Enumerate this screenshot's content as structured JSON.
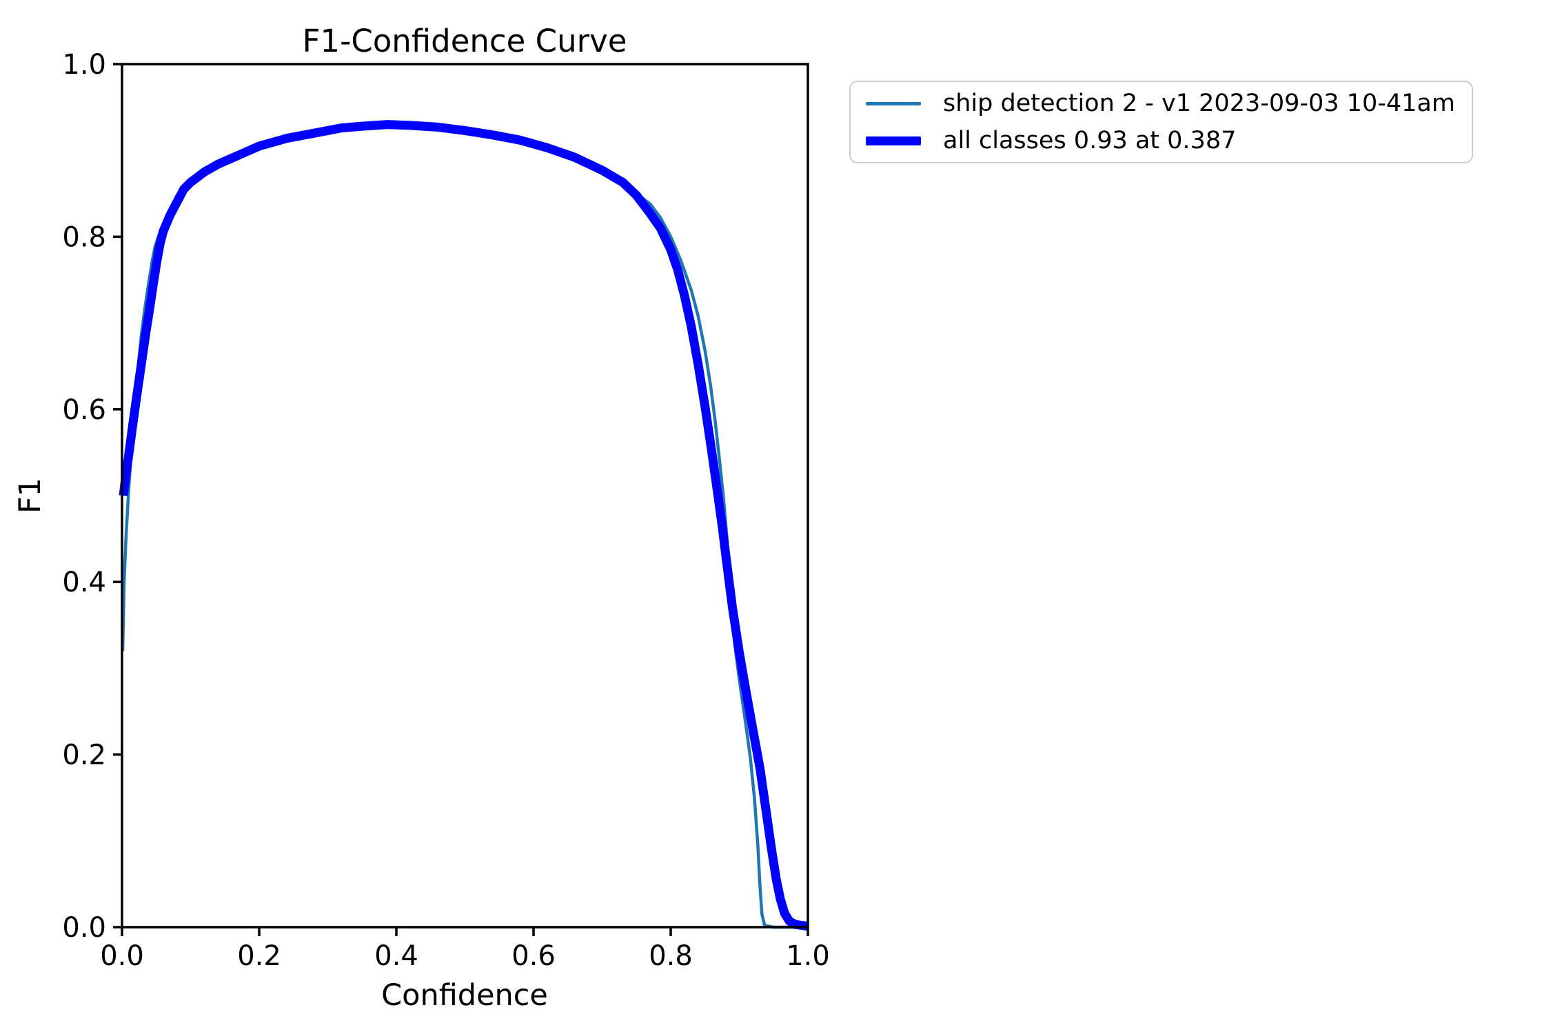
{
  "figure": {
    "background_color": "#ffffff",
    "text_color": "#000000"
  },
  "chart_data": {
    "type": "line",
    "title": "F1-Confidence Curve",
    "xlabel": "Confidence",
    "ylabel": "F1",
    "xlim": [
      0.0,
      1.0
    ],
    "ylim": [
      0.0,
      1.0
    ],
    "grid": false,
    "axis_color": "#000000",
    "xticks": {
      "values": [
        0.0,
        0.2,
        0.4,
        0.6,
        0.8,
        1.0
      ],
      "labels": [
        "0.0",
        "0.2",
        "0.4",
        "0.6",
        "0.8",
        "1.0"
      ]
    },
    "yticks": {
      "values": [
        0.0,
        0.2,
        0.4,
        0.6,
        0.8,
        1.0
      ],
      "labels": [
        "0.0",
        "0.2",
        "0.4",
        "0.6",
        "0.8",
        "1.0"
      ]
    },
    "legend": {
      "position": "outside-upper-right",
      "border_color": "#cccccc",
      "background_color": "#ffffff"
    },
    "series": [
      {
        "name": "ship-detection-2-v1",
        "label": "ship detection 2 - v1 2023-09-03 10-41am",
        "color": "#1f77b4",
        "line_width": 4.5,
        "points": [
          [
            0.001,
            0.32
          ],
          [
            0.003,
            0.4
          ],
          [
            0.006,
            0.455
          ],
          [
            0.01,
            0.51
          ],
          [
            0.014,
            0.555
          ],
          [
            0.018,
            0.6
          ],
          [
            0.023,
            0.645
          ],
          [
            0.028,
            0.685
          ],
          [
            0.033,
            0.715
          ],
          [
            0.038,
            0.742
          ],
          [
            0.044,
            0.772
          ],
          [
            0.048,
            0.788
          ],
          [
            0.053,
            0.8
          ],
          [
            0.06,
            0.815
          ],
          [
            0.07,
            0.83
          ],
          [
            0.08,
            0.845
          ],
          [
            0.09,
            0.857
          ],
          [
            0.1,
            0.864
          ],
          [
            0.12,
            0.875
          ],
          [
            0.14,
            0.883
          ],
          [
            0.16,
            0.89
          ],
          [
            0.18,
            0.897
          ],
          [
            0.2,
            0.904
          ],
          [
            0.24,
            0.913
          ],
          [
            0.28,
            0.92
          ],
          [
            0.32,
            0.925
          ],
          [
            0.36,
            0.928
          ],
          [
            0.4,
            0.93
          ],
          [
            0.44,
            0.929
          ],
          [
            0.48,
            0.926
          ],
          [
            0.52,
            0.922
          ],
          [
            0.56,
            0.916
          ],
          [
            0.6,
            0.907
          ],
          [
            0.64,
            0.896
          ],
          [
            0.68,
            0.883
          ],
          [
            0.71,
            0.871
          ],
          [
            0.74,
            0.856
          ],
          [
            0.77,
            0.838
          ],
          [
            0.785,
            0.822
          ],
          [
            0.8,
            0.8
          ],
          [
            0.815,
            0.772
          ],
          [
            0.83,
            0.738
          ],
          [
            0.84,
            0.708
          ],
          [
            0.85,
            0.668
          ],
          [
            0.858,
            0.628
          ],
          [
            0.865,
            0.585
          ],
          [
            0.872,
            0.535
          ],
          [
            0.877,
            0.497
          ],
          [
            0.882,
            0.45
          ],
          [
            0.887,
            0.39
          ],
          [
            0.893,
            0.33
          ],
          [
            0.9,
            0.287
          ],
          [
            0.908,
            0.243
          ],
          [
            0.916,
            0.197
          ],
          [
            0.922,
            0.15
          ],
          [
            0.927,
            0.095
          ],
          [
            0.93,
            0.05
          ],
          [
            0.933,
            0.015
          ],
          [
            0.937,
            0.002
          ],
          [
            0.95,
            0.0
          ],
          [
            1.0,
            0.0
          ]
        ]
      },
      {
        "name": "all-classes",
        "label": "all classes 0.93 at 0.387",
        "color": "#0000ff",
        "line_width": 13,
        "peak": {
          "f1": 0.93,
          "confidence": 0.387
        },
        "points": [
          [
            0.002,
            0.5
          ],
          [
            0.005,
            0.52
          ],
          [
            0.01,
            0.548
          ],
          [
            0.015,
            0.578
          ],
          [
            0.02,
            0.607
          ],
          [
            0.025,
            0.635
          ],
          [
            0.03,
            0.662
          ],
          [
            0.035,
            0.69
          ],
          [
            0.04,
            0.715
          ],
          [
            0.045,
            0.742
          ],
          [
            0.05,
            0.768
          ],
          [
            0.055,
            0.79
          ],
          [
            0.06,
            0.806
          ],
          [
            0.07,
            0.825
          ],
          [
            0.08,
            0.84
          ],
          [
            0.09,
            0.855
          ],
          [
            0.1,
            0.863
          ],
          [
            0.12,
            0.875
          ],
          [
            0.14,
            0.884
          ],
          [
            0.16,
            0.891
          ],
          [
            0.18,
            0.898
          ],
          [
            0.2,
            0.905
          ],
          [
            0.24,
            0.914
          ],
          [
            0.28,
            0.92
          ],
          [
            0.32,
            0.926
          ],
          [
            0.35,
            0.928
          ],
          [
            0.387,
            0.93
          ],
          [
            0.42,
            0.929
          ],
          [
            0.46,
            0.927
          ],
          [
            0.5,
            0.923
          ],
          [
            0.54,
            0.918
          ],
          [
            0.58,
            0.912
          ],
          [
            0.62,
            0.903
          ],
          [
            0.66,
            0.892
          ],
          [
            0.7,
            0.877
          ],
          [
            0.73,
            0.863
          ],
          [
            0.75,
            0.848
          ],
          [
            0.77,
            0.827
          ],
          [
            0.785,
            0.81
          ],
          [
            0.8,
            0.785
          ],
          [
            0.81,
            0.762
          ],
          [
            0.82,
            0.732
          ],
          [
            0.83,
            0.696
          ],
          [
            0.84,
            0.652
          ],
          [
            0.85,
            0.603
          ],
          [
            0.86,
            0.55
          ],
          [
            0.868,
            0.505
          ],
          [
            0.875,
            0.465
          ],
          [
            0.882,
            0.42
          ],
          [
            0.89,
            0.37
          ],
          [
            0.9,
            0.318
          ],
          [
            0.91,
            0.272
          ],
          [
            0.92,
            0.228
          ],
          [
            0.93,
            0.185
          ],
          [
            0.939,
            0.135
          ],
          [
            0.947,
            0.09
          ],
          [
            0.954,
            0.055
          ],
          [
            0.96,
            0.032
          ],
          [
            0.966,
            0.016
          ],
          [
            0.973,
            0.007
          ],
          [
            0.982,
            0.003
          ],
          [
            1.0,
            0.001
          ]
        ]
      }
    ]
  }
}
